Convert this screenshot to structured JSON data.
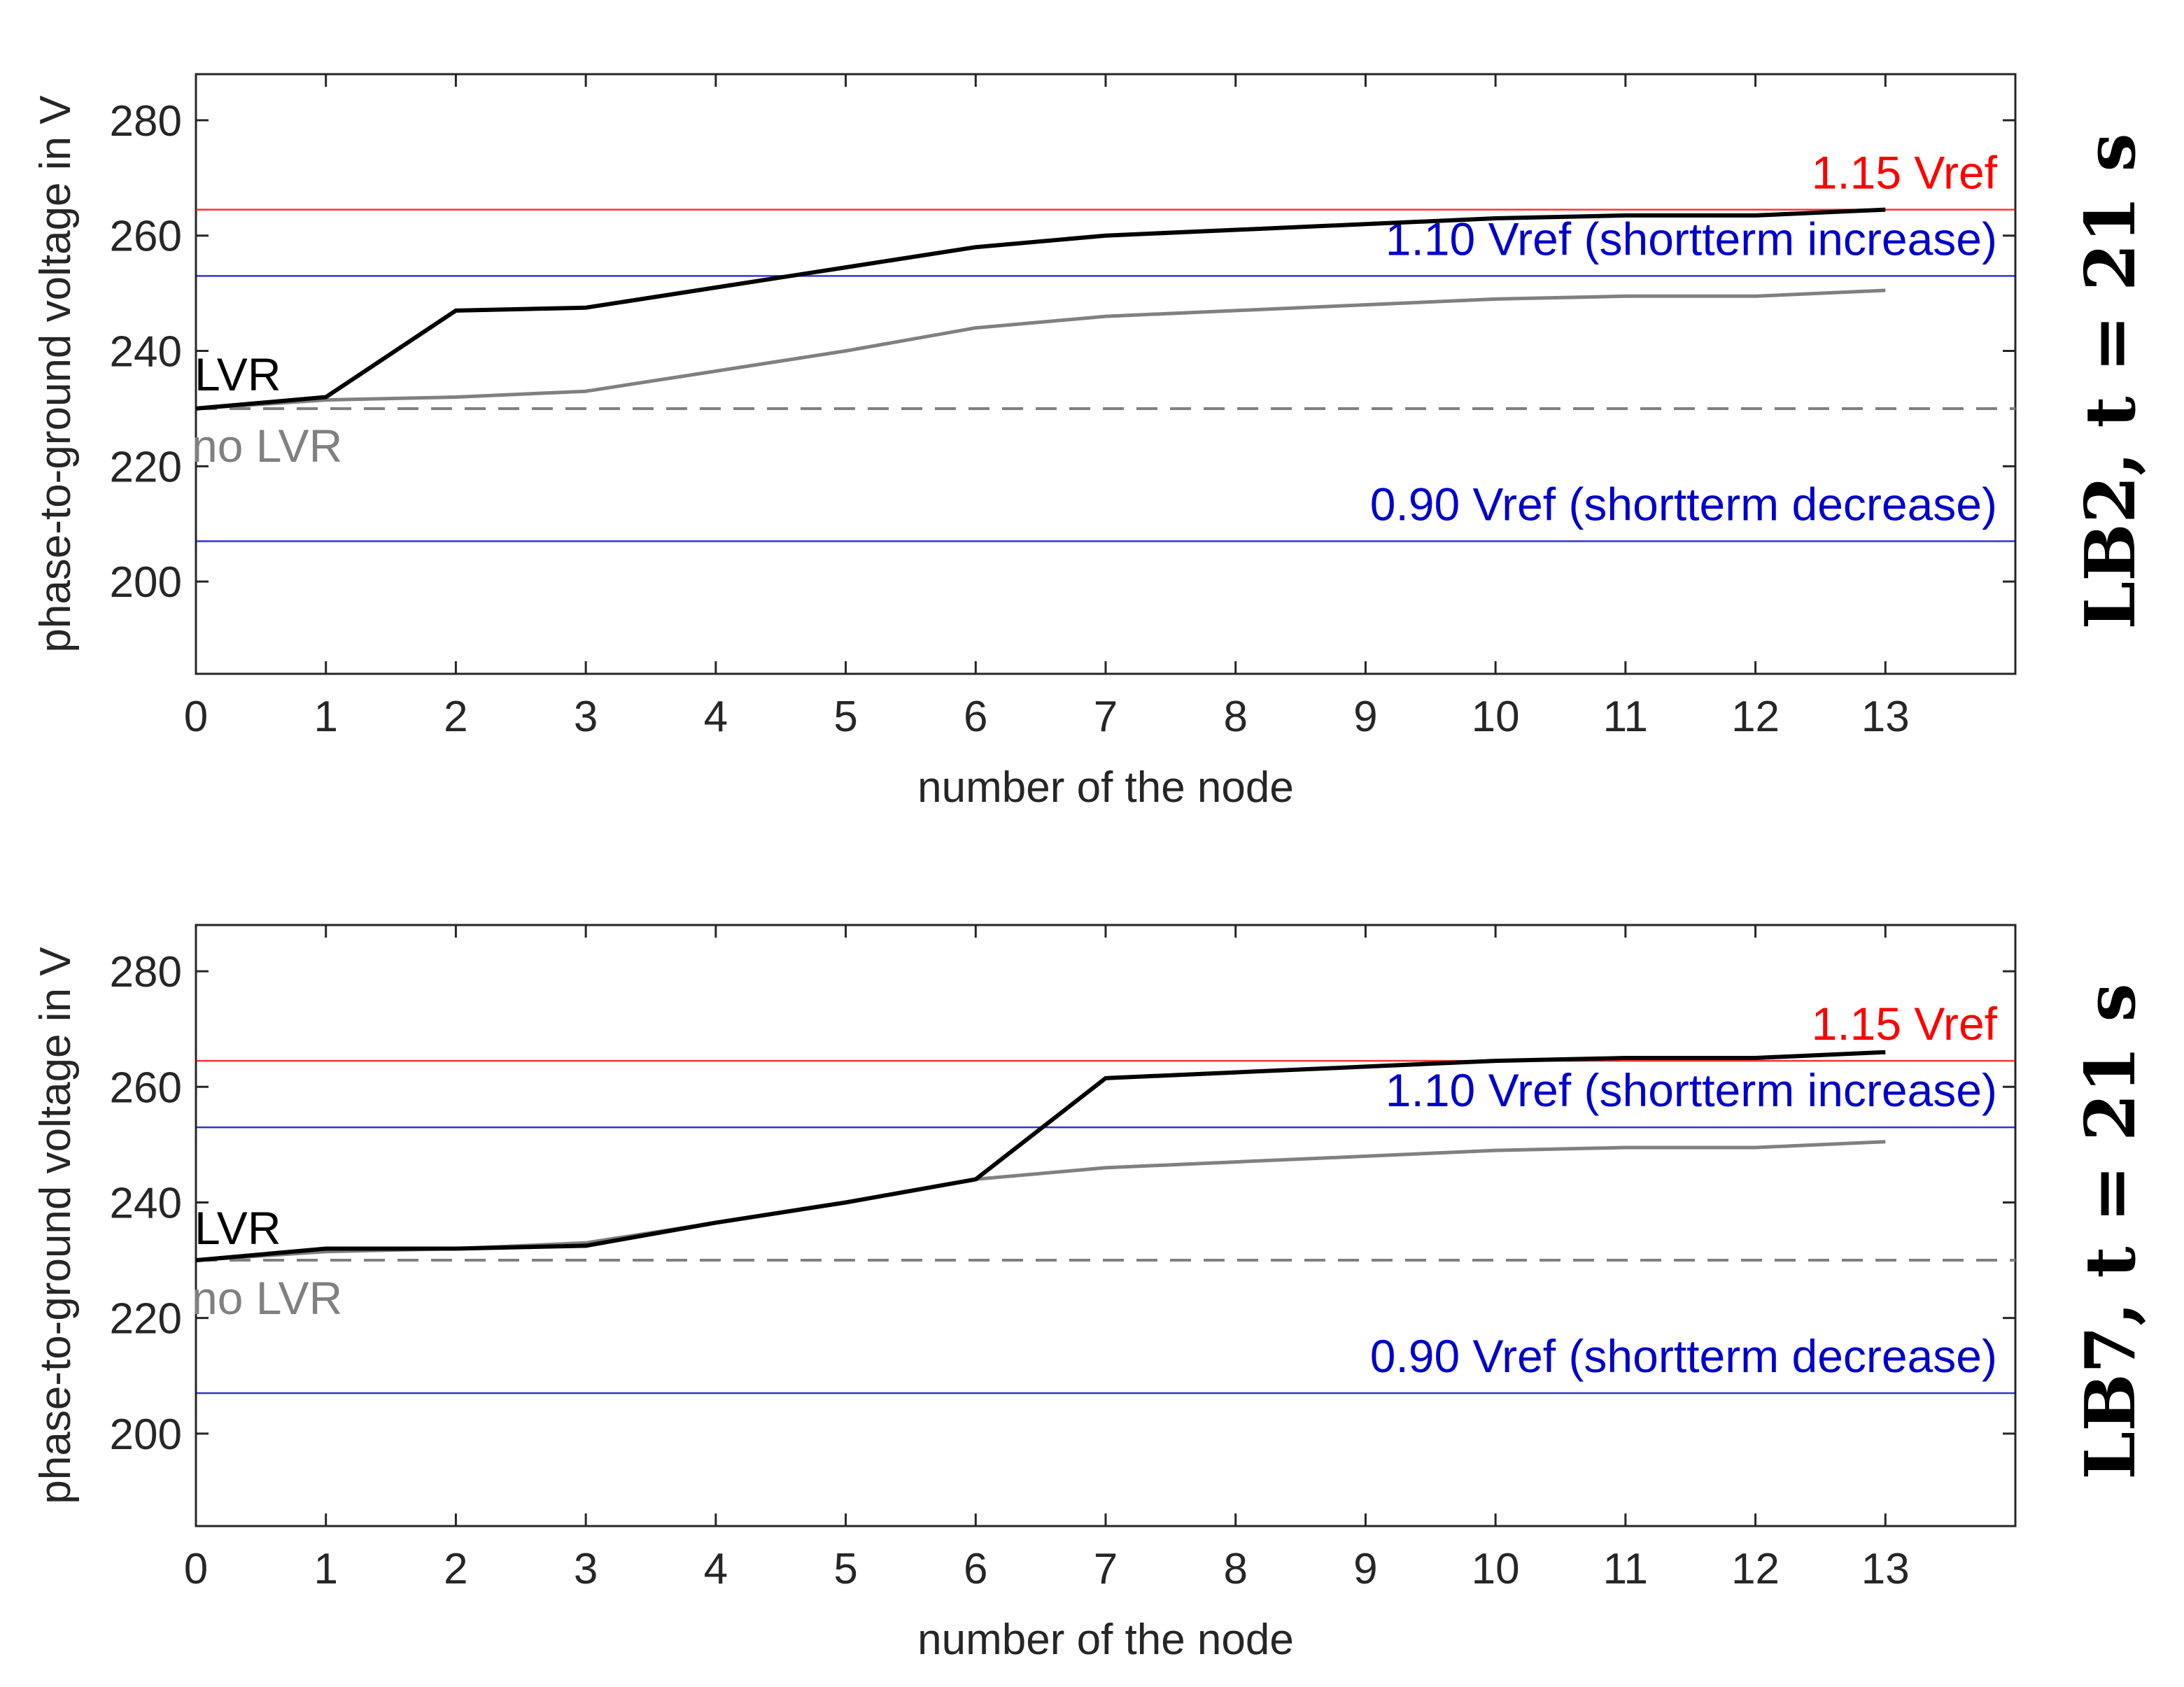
{
  "chart_data": [
    {
      "type": "line",
      "side_title": "LB2, t = 21 s",
      "xlabel": "number of the node",
      "ylabel": "phase-to-ground voltage in V",
      "xlim": [
        0,
        14
      ],
      "ylim": [
        184,
        288
      ],
      "x_ticks": [
        0,
        1,
        2,
        3,
        4,
        5,
        6,
        7,
        8,
        9,
        10,
        11,
        12,
        13
      ],
      "y_ticks": [
        200,
        220,
        240,
        260,
        280
      ],
      "grid": false,
      "series": [
        {
          "name": "LVR",
          "color": "#000000",
          "x": [
            0,
            1,
            2,
            3,
            4,
            5,
            6,
            7,
            8,
            9,
            10,
            11,
            12,
            13
          ],
          "values": [
            230,
            232,
            247,
            247.5,
            251,
            254.5,
            258,
            260,
            261,
            262,
            263,
            263.5,
            263.5,
            264.5
          ]
        },
        {
          "name": "no LVR",
          "color": "#808080",
          "x": [
            0,
            1,
            2,
            3,
            4,
            5,
            6,
            7,
            8,
            9,
            10,
            11,
            12,
            13
          ],
          "values": [
            230,
            231.5,
            232,
            233,
            236.5,
            240,
            244,
            246,
            247,
            248,
            249,
            249.5,
            249.5,
            250.5
          ]
        }
      ],
      "reference_lines": [
        {
          "label": "1.15 Vref",
          "value": 264.5,
          "color": "#ff0000",
          "dashed": false
        },
        {
          "label": "1.10 Vref (shortterm increase)",
          "value": 253,
          "color": "#0000cc",
          "dashed": false
        },
        {
          "label": "",
          "value": 230,
          "color": "#808080",
          "dashed": true
        },
        {
          "label": "0.90 Vref (shortterm decrease)",
          "value": 207,
          "color": "#0000cc",
          "dashed": false
        }
      ],
      "annotations": [
        {
          "text": "LVR",
          "color": "#000000"
        },
        {
          "text": "no LVR",
          "color": "#808080"
        }
      ]
    },
    {
      "type": "line",
      "side_title": "LB7, t = 21 s",
      "xlabel": "number of the node",
      "ylabel": "phase-to-ground voltage in V",
      "xlim": [
        0,
        14
      ],
      "ylim": [
        184,
        288
      ],
      "x_ticks": [
        0,
        1,
        2,
        3,
        4,
        5,
        6,
        7,
        8,
        9,
        10,
        11,
        12,
        13
      ],
      "y_ticks": [
        200,
        220,
        240,
        260,
        280
      ],
      "grid": false,
      "series": [
        {
          "name": "LVR",
          "color": "#000000",
          "x": [
            0,
            1,
            2,
            3,
            4,
            5,
            6,
            7,
            8,
            9,
            10,
            11,
            12,
            13
          ],
          "values": [
            230,
            232,
            232,
            232.5,
            236.5,
            240,
            244,
            261.5,
            262.5,
            263.5,
            264.5,
            265,
            265,
            266
          ]
        },
        {
          "name": "no LVR",
          "color": "#808080",
          "x": [
            0,
            1,
            2,
            3,
            4,
            5,
            6,
            7,
            8,
            9,
            10,
            11,
            12,
            13
          ],
          "values": [
            230,
            231.5,
            232,
            233,
            236.5,
            240,
            244,
            246,
            247,
            248,
            249,
            249.5,
            249.5,
            250.5
          ]
        }
      ],
      "reference_lines": [
        {
          "label": "1.15 Vref",
          "value": 264.5,
          "color": "#ff0000",
          "dashed": false
        },
        {
          "label": "1.10 Vref (shortterm increase)",
          "value": 253,
          "color": "#0000cc",
          "dashed": false
        },
        {
          "label": "",
          "value": 230,
          "color": "#808080",
          "dashed": true
        },
        {
          "label": "0.90 Vref (shortterm decrease)",
          "value": 207,
          "color": "#0000cc",
          "dashed": false
        }
      ],
      "annotations": [
        {
          "text": "LVR",
          "color": "#000000"
        },
        {
          "text": "no LVR",
          "color": "#808080"
        }
      ]
    }
  ]
}
